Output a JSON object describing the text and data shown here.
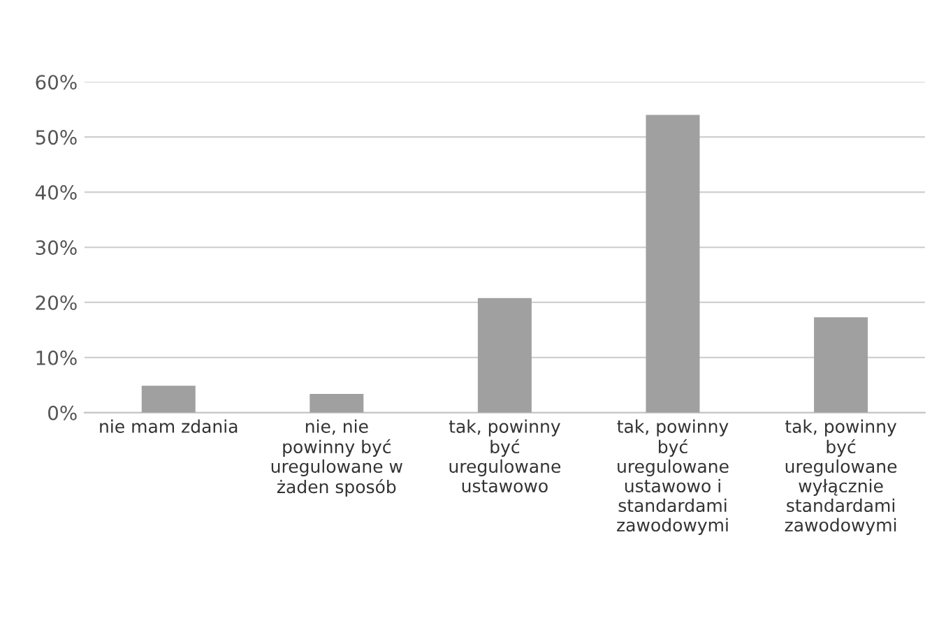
{
  "chart_data": {
    "type": "bar",
    "categories": [
      "nie mam zdania",
      "nie, nie\npowinny być\nuregulowane w\nżaden sposób",
      "tak, powinny\nbyć\nuregulowane\nustawowo",
      "tak, powinny\nbyć\nuregulowane\nustawowo i\nstandardami\nzawodowymi",
      "tak, powinny\nbyć\nuregulowane\nwyłącznie\nstandardami\nzawodowymi"
    ],
    "values": [
      4.9,
      3.4,
      20.8,
      54.0,
      17.3
    ],
    "color": "#a0a0a0",
    "ylim": [
      0,
      60
    ],
    "yticks": [
      {
        "value": 0,
        "label": "0%"
      },
      {
        "value": 10,
        "label": "10%"
      },
      {
        "value": 20,
        "label": "20%"
      },
      {
        "value": 30,
        "label": "30%"
      },
      {
        "value": 40,
        "label": "40%"
      },
      {
        "value": 50,
        "label": "50%"
      },
      {
        "value": 60,
        "label": "60%"
      }
    ],
    "grid": "y",
    "legend": false
  }
}
